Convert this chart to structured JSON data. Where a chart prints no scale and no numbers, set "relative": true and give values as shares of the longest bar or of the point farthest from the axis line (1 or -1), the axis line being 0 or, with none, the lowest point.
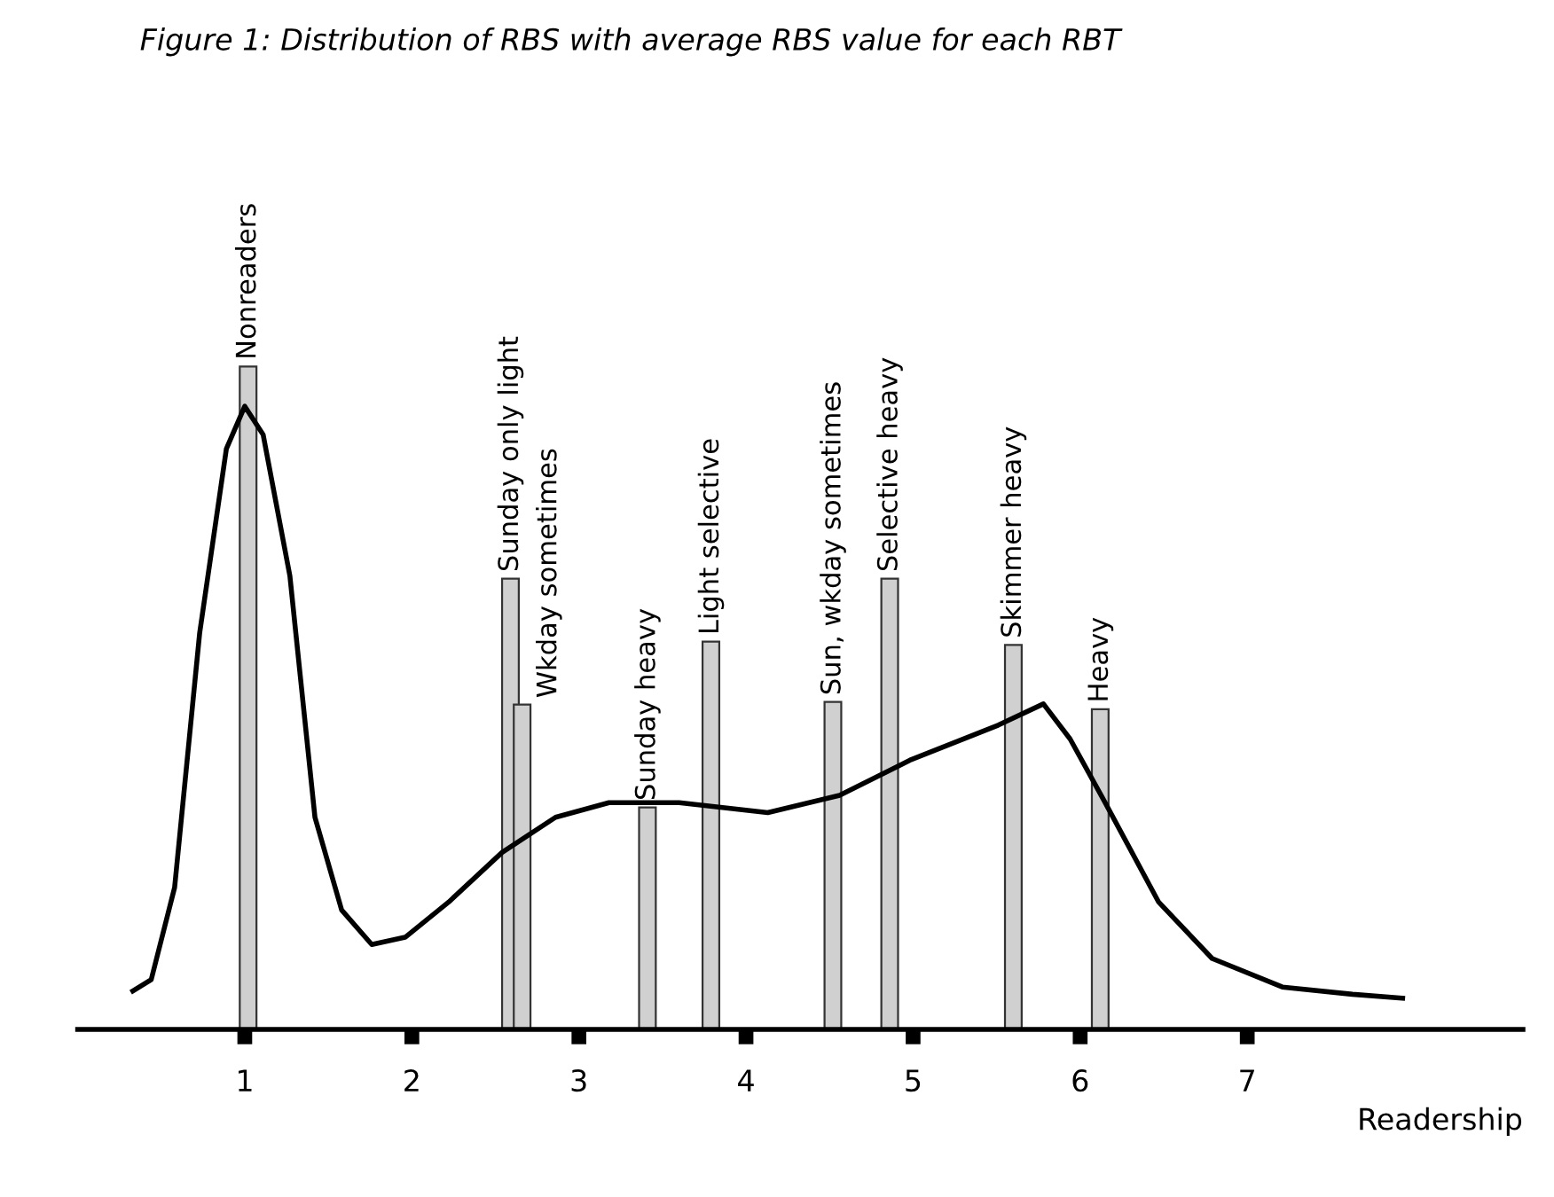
{
  "chart_data": {
    "type": "bar",
    "title": "Figure 1: Distribution of RBS with average RBS value for each RBT",
    "xlabel": "Readership",
    "relative": true,
    "xlim": [
      0,
      8.65
    ],
    "xticks": [
      1,
      2,
      3,
      4,
      5,
      6,
      7
    ],
    "tick_labels": "x",
    "legend": false,
    "grid": false,
    "series": [
      {
        "color": "#d0d0d0",
        "x": [
          1.02,
          2.59,
          2.66,
          3.41,
          3.79,
          4.52,
          4.86,
          5.6,
          6.12
        ],
        "values": [
          1.0,
          0.68,
          0.49,
          0.335,
          0.585,
          0.494,
          0.68,
          0.58,
          0.483
        ]
      },
      {
        "type": "line",
        "color": "#000000",
        "x": [
          0.33,
          0.44,
          0.58,
          0.73,
          0.89,
          1.0,
          1.11,
          1.27,
          1.42,
          1.58,
          1.76,
          1.96,
          2.22,
          2.54,
          2.86,
          3.18,
          3.6,
          4.13,
          4.56,
          4.98,
          5.51,
          5.78,
          5.94,
          6.15,
          6.47,
          6.79,
          7.21,
          7.63,
          7.93
        ],
        "values": [
          0.058,
          0.075,
          0.214,
          0.598,
          0.876,
          0.94,
          0.897,
          0.684,
          0.32,
          0.18,
          0.128,
          0.139,
          0.192,
          0.267,
          0.32,
          0.342,
          0.342,
          0.327,
          0.353,
          0.406,
          0.459,
          0.491,
          0.438,
          0.342,
          0.192,
          0.107,
          0.064,
          0.053,
          0.047
        ]
      }
    ],
    "annotations": [
      {
        "text": "Nonreaders",
        "x": 1.02,
        "y": 1.0
      },
      {
        "text": "Sunday only light",
        "x": 2.59,
        "y": 0.68
      },
      {
        "text": "Wkday sometimes",
        "x": 2.66,
        "y": 0.49
      },
      {
        "text": "Sunday heavy",
        "x": 3.41,
        "y": 0.335
      },
      {
        "text": "Light selective",
        "x": 3.79,
        "y": 0.585
      },
      {
        "text": "Sun, wkday sometimes",
        "x": 4.52,
        "y": 0.494
      },
      {
        "text": "Selective heavy",
        "x": 4.86,
        "y": 0.68
      },
      {
        "text": "Skimmer heavy",
        "x": 5.6,
        "y": 0.58
      },
      {
        "text": "Heavy",
        "x": 6.12,
        "y": 0.483
      }
    ]
  }
}
